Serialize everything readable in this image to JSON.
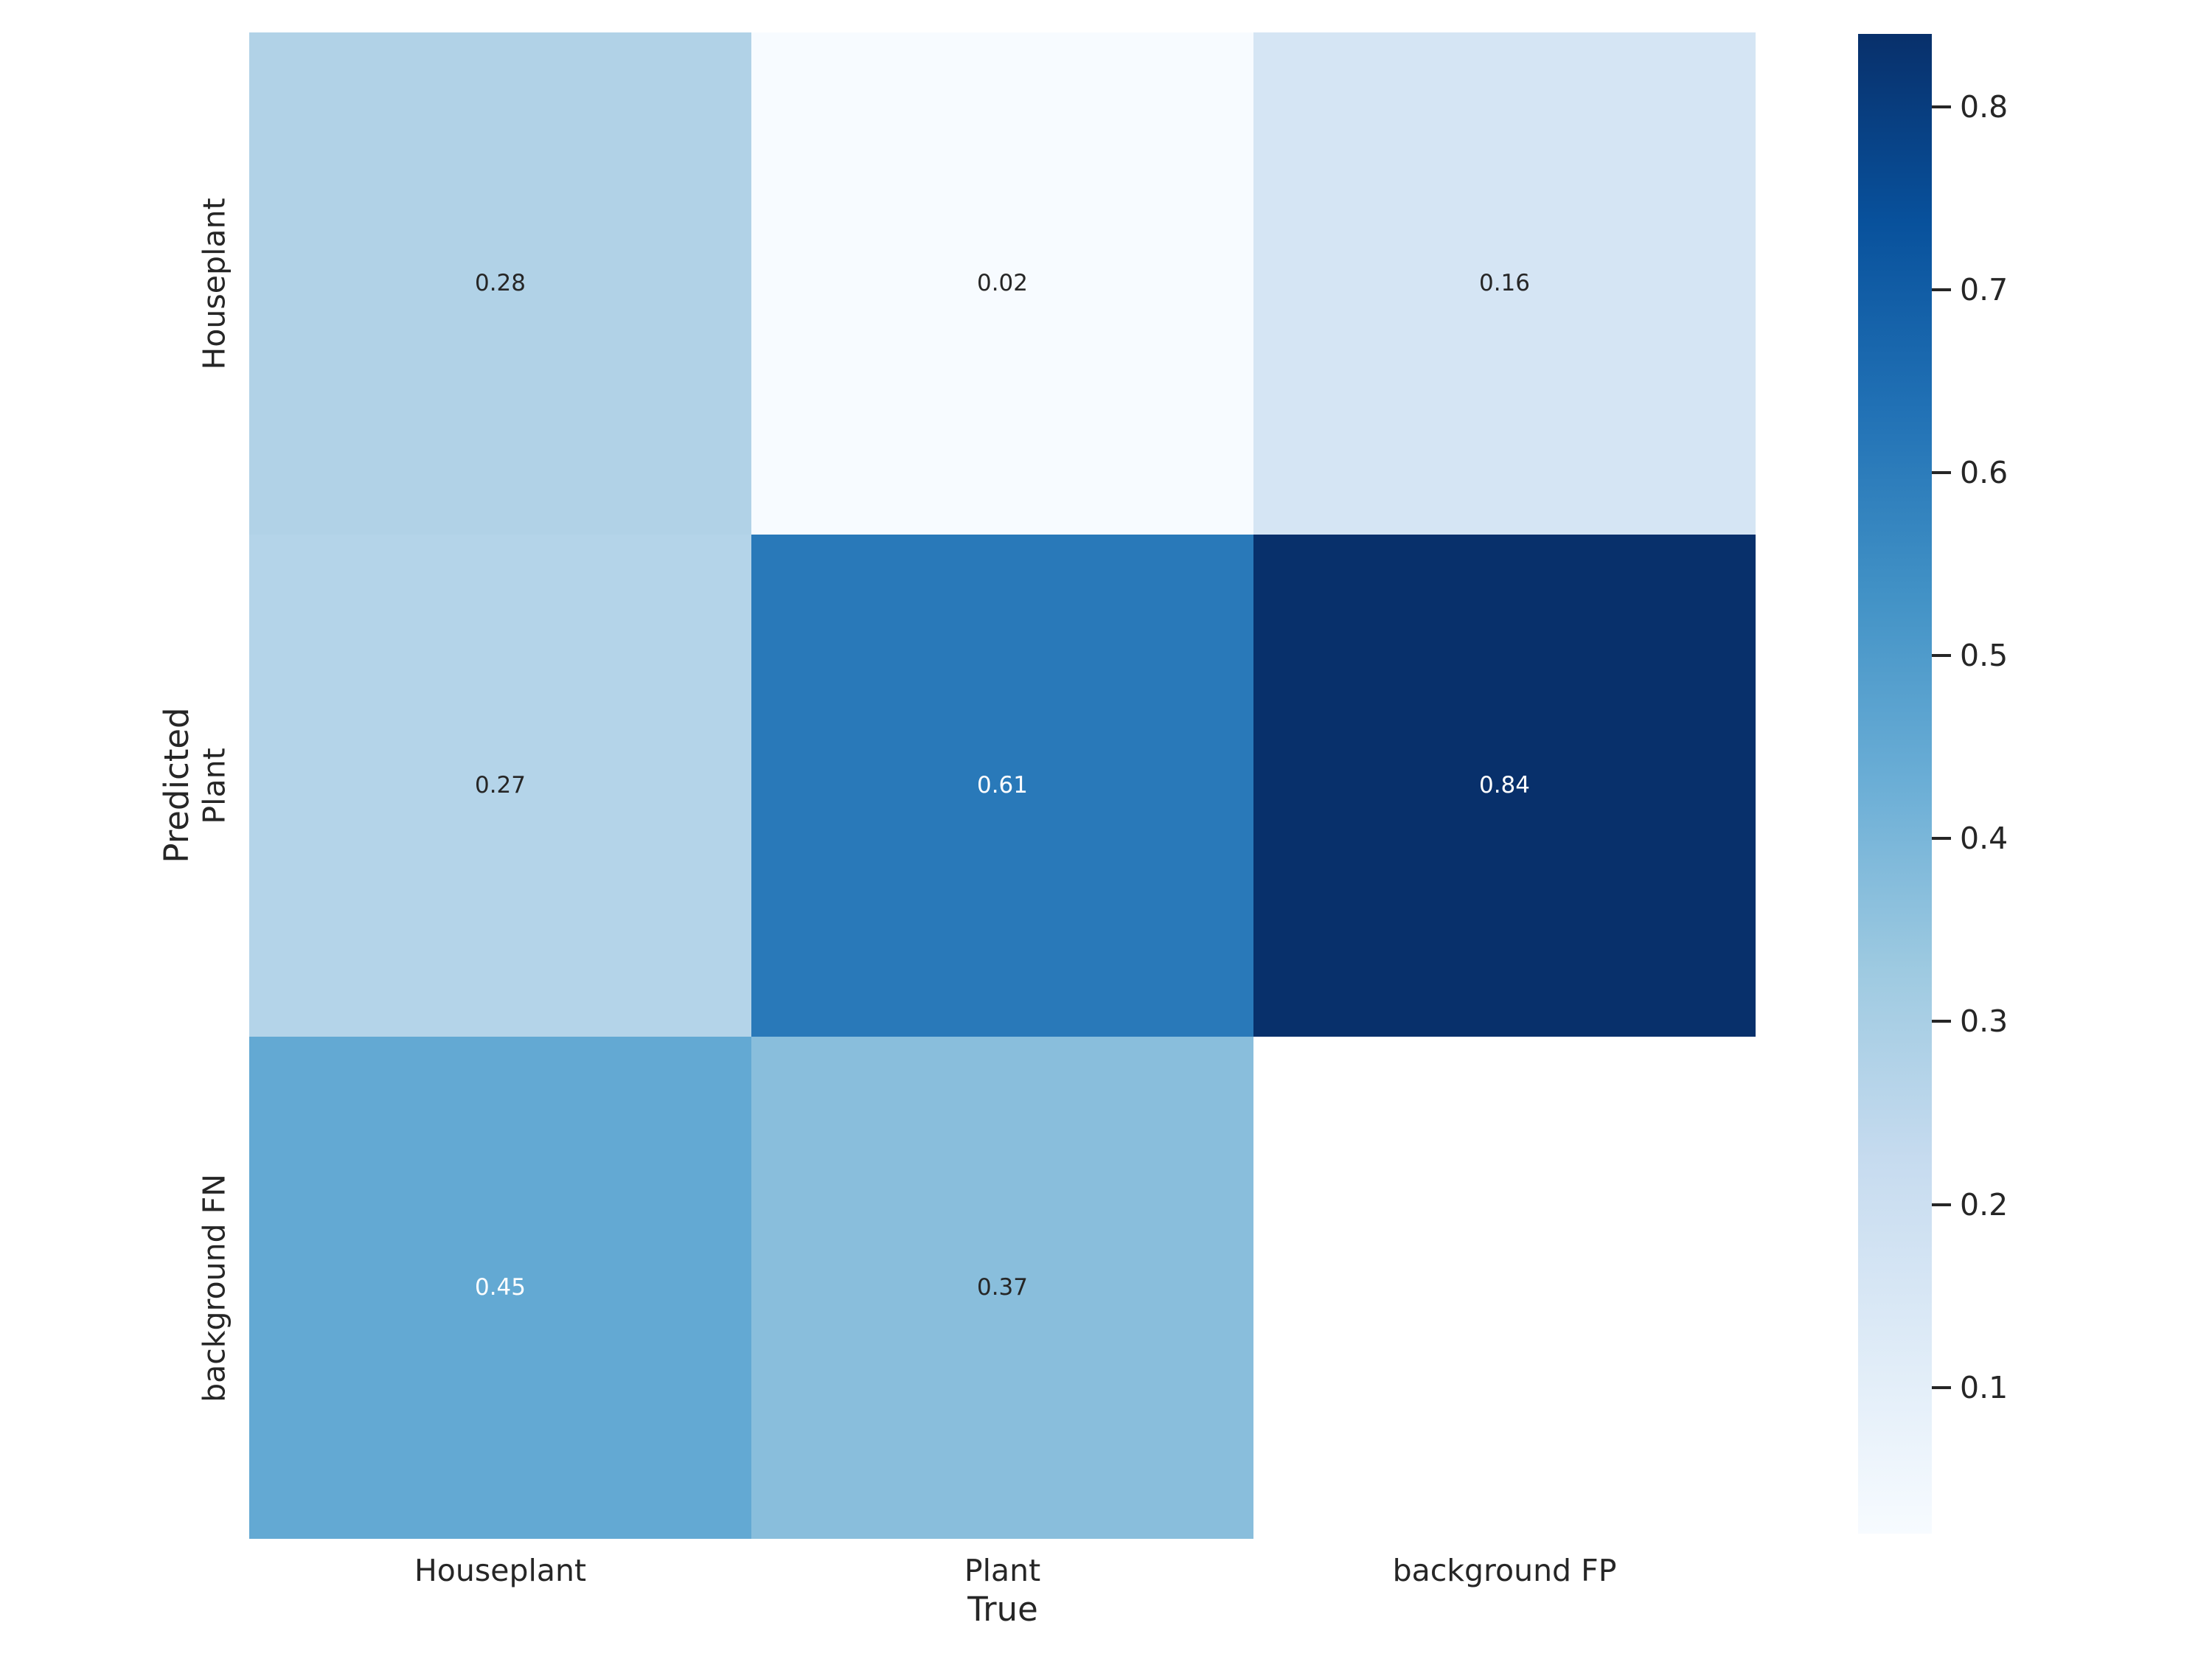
{
  "figure": {
    "background": "#ffffff"
  },
  "chart_data": {
    "type": "heatmap",
    "title": "",
    "xlabel": "True",
    "ylabel": "Predicted",
    "x_categories": [
      "Houseplant",
      "Plant",
      "background FP"
    ],
    "y_categories": [
      "Houseplant",
      "Plant",
      "background FN"
    ],
    "values": [
      [
        0.28,
        0.02,
        0.16
      ],
      [
        0.27,
        0.61,
        0.84
      ],
      [
        0.45,
        0.37,
        null
      ]
    ],
    "annotations": [
      [
        "0.28",
        "0.02",
        "0.16"
      ],
      [
        "0.27",
        "0.61",
        "0.84"
      ],
      [
        "0.45",
        "0.37",
        ""
      ]
    ],
    "vmin": 0.02,
    "vmax": 0.84,
    "colormap": "Blues",
    "colormap_anchors": [
      "#f7fbff",
      "#deebf7",
      "#c6dbef",
      "#9ecae1",
      "#6baed6",
      "#4292c6",
      "#2171b5",
      "#08519c",
      "#08306b"
    ],
    "nan_color": "#ffffff",
    "annotation_dark_color": "#262626",
    "annotation_light_color": "#ffffff",
    "tick_label_color": "#262626",
    "colorbar_ticks": [
      0.8,
      0.7,
      0.6,
      0.5,
      0.4,
      0.3,
      0.2,
      0.1
    ],
    "colorbar_tick_labels": [
      "0.8",
      "0.7",
      "0.6",
      "0.5",
      "0.4",
      "0.3",
      "0.2",
      "0.1"
    ],
    "grid": false,
    "legend_position": "colorbar-right"
  }
}
